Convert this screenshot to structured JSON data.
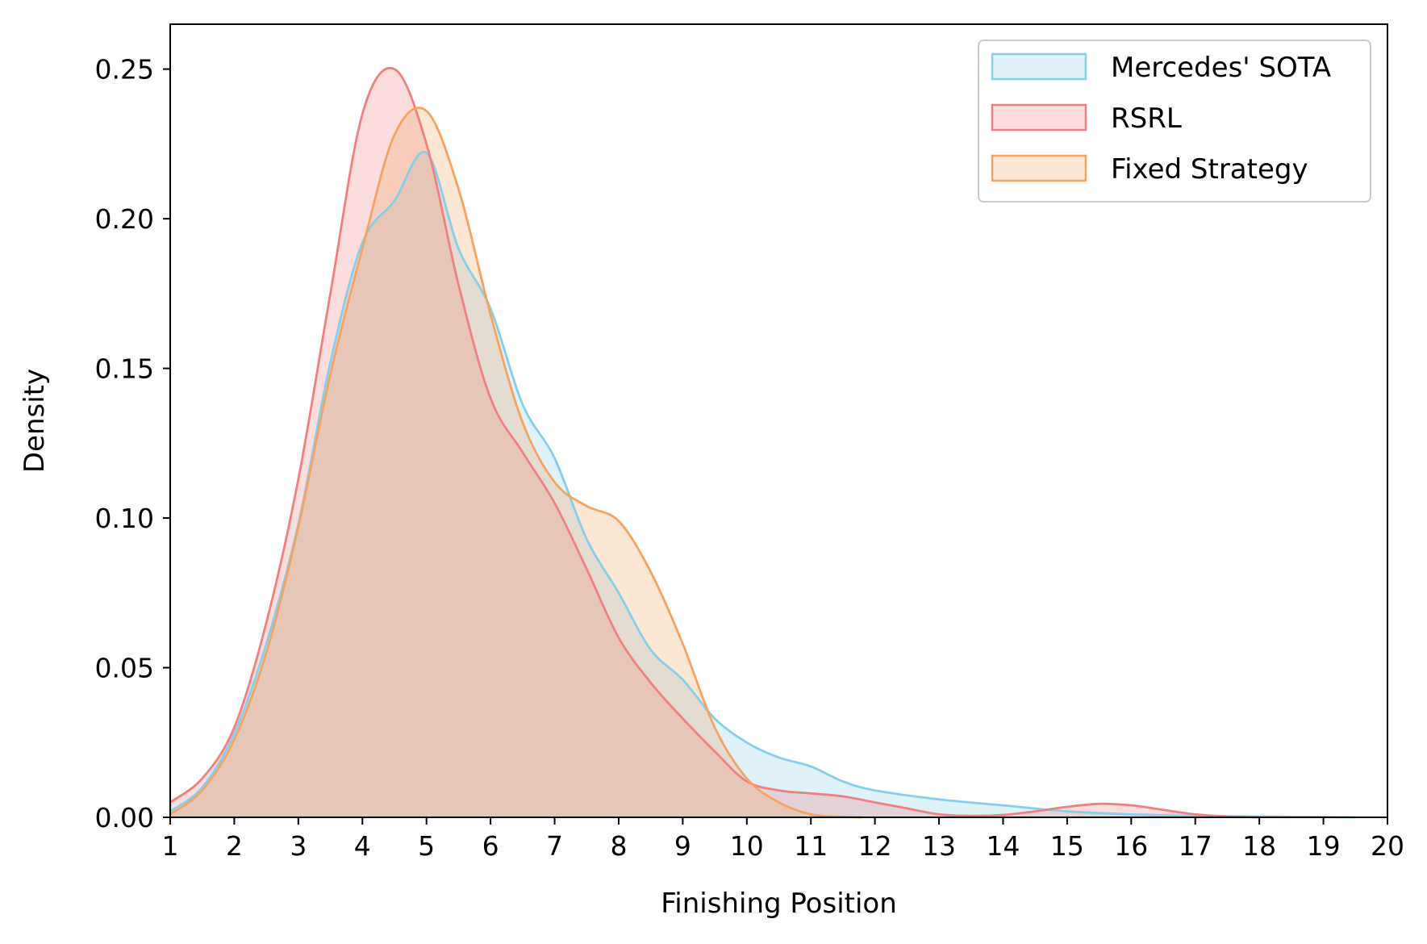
{
  "chart_data": {
    "type": "area",
    "xlabel": "Finishing Position",
    "ylabel": "Density",
    "xlim": [
      1,
      20
    ],
    "ylim": [
      0,
      0.265
    ],
    "xticks": [
      1,
      2,
      3,
      4,
      5,
      6,
      7,
      8,
      9,
      10,
      11,
      12,
      13,
      14,
      15,
      16,
      17,
      18,
      19,
      20
    ],
    "yticks": [
      "0.00",
      "0.05",
      "0.10",
      "0.15",
      "0.20",
      "0.25"
    ],
    "grid": false,
    "legend_position": "top-right",
    "series": [
      {
        "name": "Mercedes' SOTA",
        "color": "#87CEEB",
        "x": [
          1,
          1.5,
          2,
          2.5,
          3,
          3.5,
          4,
          4.5,
          5,
          5.5,
          6,
          6.5,
          7,
          7.5,
          8,
          8.5,
          9,
          9.5,
          10,
          10.5,
          11,
          11.5,
          12,
          13,
          14,
          15,
          16,
          17,
          18,
          19,
          19.5
        ],
        "y": [
          0.002,
          0.01,
          0.028,
          0.058,
          0.098,
          0.152,
          0.192,
          0.206,
          0.222,
          0.19,
          0.17,
          0.138,
          0.12,
          0.093,
          0.075,
          0.056,
          0.046,
          0.033,
          0.025,
          0.02,
          0.017,
          0.012,
          0.009,
          0.006,
          0.004,
          0.002,
          0.001,
          0.0005,
          0.0003,
          0.0001,
          0.0
        ]
      },
      {
        "name": "RSRL",
        "color": "#F08080",
        "x": [
          1,
          1.5,
          2,
          2.5,
          3,
          3.5,
          4,
          4.5,
          5,
          5.5,
          6,
          6.5,
          7,
          7.5,
          8,
          8.5,
          9,
          9.5,
          10,
          10.5,
          11,
          11.5,
          12,
          12.5,
          13,
          13.5,
          14,
          14.5,
          15,
          15.5,
          16,
          16.5,
          17,
          17.5,
          18
        ],
        "y": [
          0.005,
          0.013,
          0.03,
          0.065,
          0.113,
          0.175,
          0.235,
          0.25,
          0.225,
          0.178,
          0.14,
          0.122,
          0.105,
          0.083,
          0.06,
          0.045,
          0.033,
          0.022,
          0.012,
          0.009,
          0.008,
          0.007,
          0.005,
          0.003,
          0.001,
          0.0005,
          0.0008,
          0.002,
          0.0035,
          0.0045,
          0.004,
          0.0025,
          0.001,
          0.0003,
          0.0
        ]
      },
      {
        "name": "Fixed Strategy",
        "color": "#F4A460",
        "x": [
          1,
          1.5,
          2,
          2.5,
          3,
          3.5,
          4,
          4.5,
          5,
          5.5,
          6,
          6.5,
          7,
          7.5,
          8,
          8.5,
          9,
          9.5,
          10,
          10.5,
          11,
          11.5,
          11.8
        ],
        "y": [
          0.001,
          0.009,
          0.026,
          0.055,
          0.097,
          0.148,
          0.19,
          0.228,
          0.236,
          0.21,
          0.168,
          0.132,
          0.112,
          0.104,
          0.099,
          0.082,
          0.058,
          0.03,
          0.013,
          0.005,
          0.001,
          0.0002,
          0.0
        ]
      }
    ]
  }
}
